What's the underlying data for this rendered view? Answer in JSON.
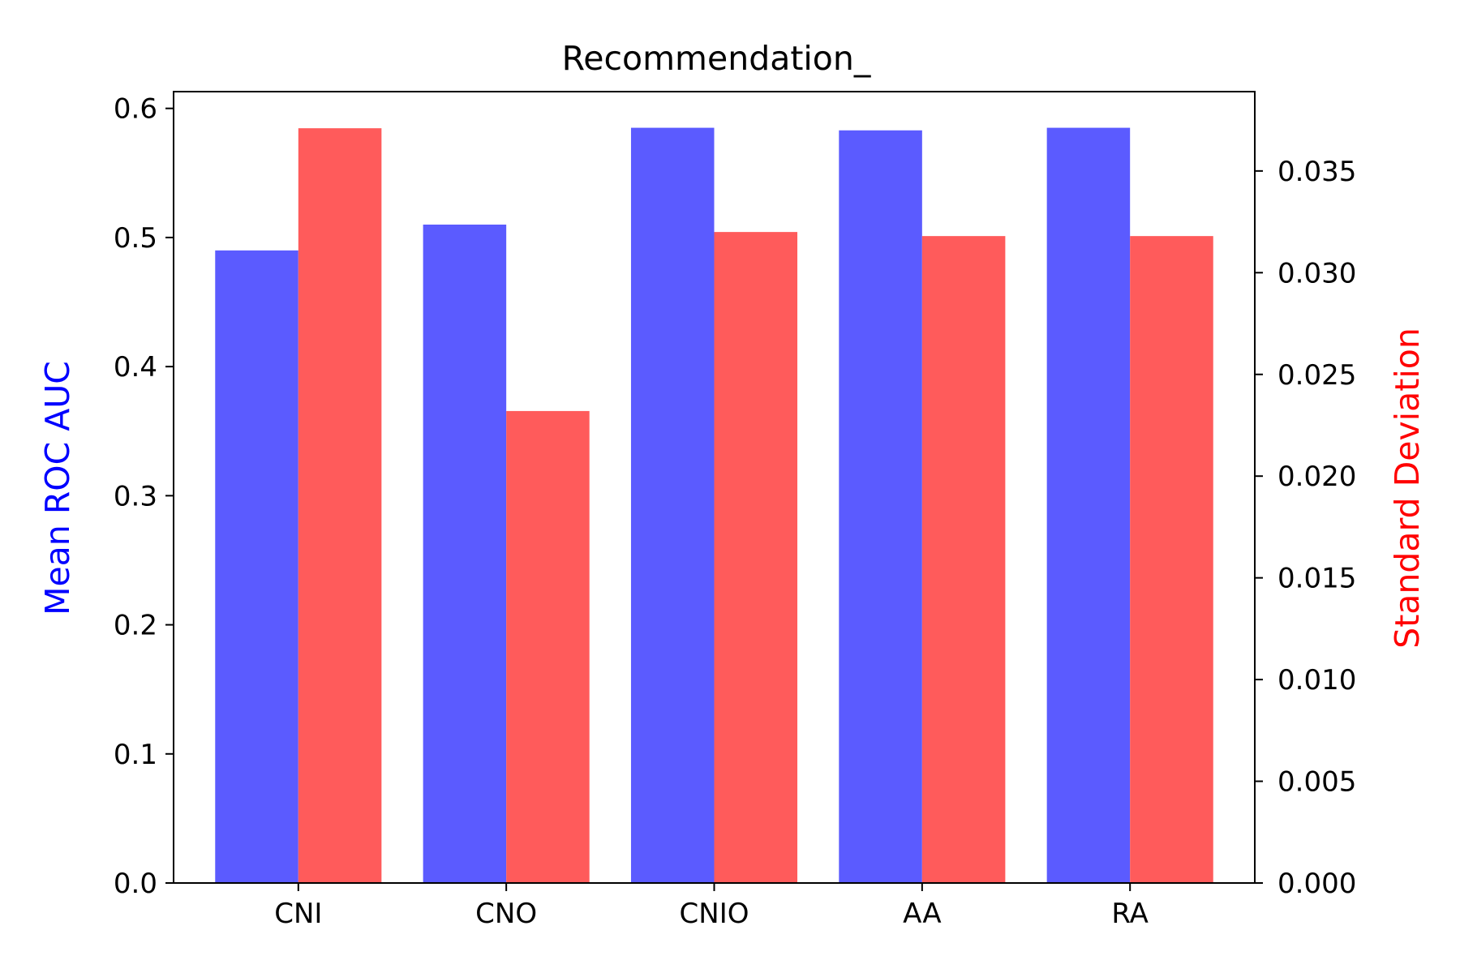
{
  "chart_data": {
    "type": "bar",
    "title": "Recommendation_",
    "categories": [
      "CNI",
      "CNO",
      "CNIO",
      "AA",
      "RA"
    ],
    "y_left": {
      "label": "Mean ROC AUC",
      "label_color": "#0000ff",
      "ylim": [
        0,
        0.613
      ],
      "ticks": [
        "0.0",
        "0.1",
        "0.2",
        "0.3",
        "0.4",
        "0.5",
        "0.6"
      ]
    },
    "y_right": {
      "label": "Standard Deviation",
      "label_color": "#ff0000",
      "ylim": [
        0,
        0.0389
      ],
      "ticks": [
        "0.000",
        "0.005",
        "0.010",
        "0.015",
        "0.020",
        "0.025",
        "0.030",
        "0.035"
      ]
    },
    "series": [
      {
        "axis": "left",
        "color": "#5b5bff",
        "values": [
          0.49,
          0.51,
          0.585,
          0.583,
          0.585
        ]
      },
      {
        "axis": "right",
        "color": "#ff5b5b",
        "values": [
          0.0371,
          0.0232,
          0.032,
          0.0318,
          0.0318
        ]
      }
    ],
    "grid": false,
    "legend": "none"
  }
}
